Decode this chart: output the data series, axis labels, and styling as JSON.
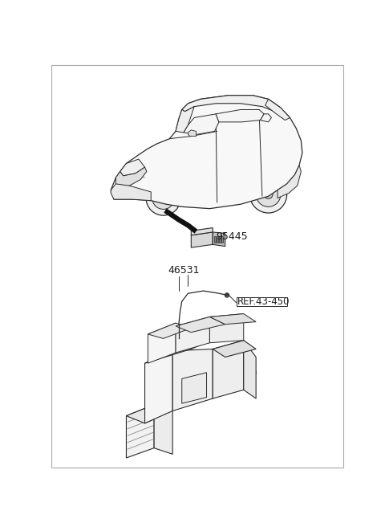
{
  "bg_color": "#ffffff",
  "border_color": "#aaaaaa",
  "label_95445": "95445",
  "label_46531": "46531",
  "label_ref": "REF.43-450",
  "fig_width": 4.8,
  "fig_height": 6.56,
  "dpi": 100,
  "line_color": "#2a2a2a",
  "light_gray": "#cccccc",
  "mid_gray": "#999999"
}
